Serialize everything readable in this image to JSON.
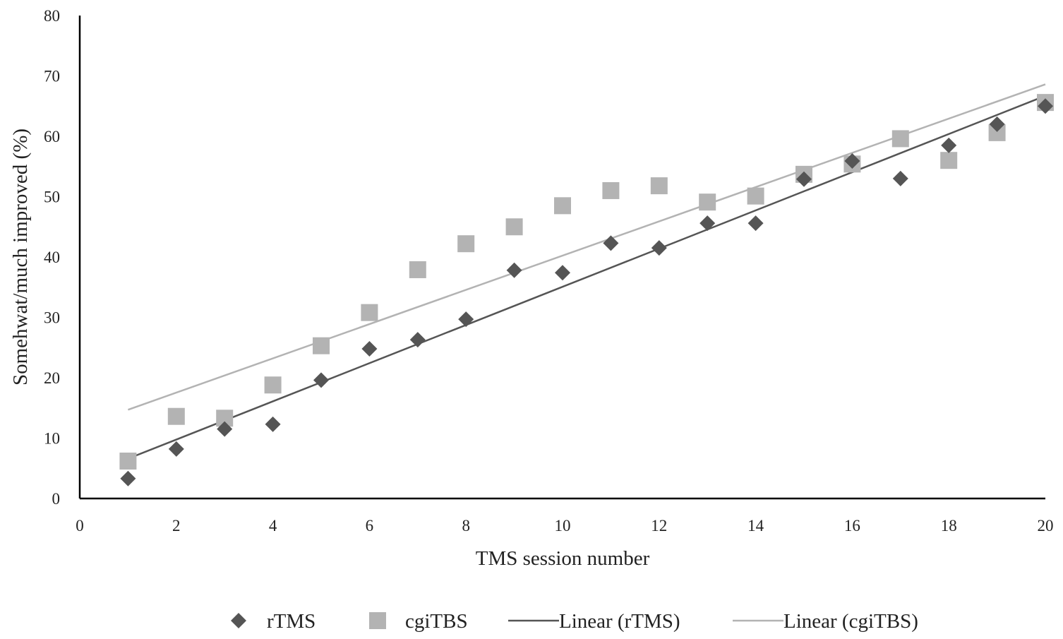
{
  "chart_data": {
    "type": "scatter",
    "title": "",
    "xlabel": "TMS session number",
    "ylabel": "Somehwat/much improved (%)",
    "xlim": [
      0,
      20
    ],
    "ylim": [
      0,
      80
    ],
    "xticks": [
      0,
      2,
      4,
      6,
      8,
      10,
      12,
      14,
      16,
      18,
      20
    ],
    "yticks": [
      0,
      10,
      20,
      30,
      40,
      50,
      60,
      70,
      80
    ],
    "grid": false,
    "legend_placement": "bottom",
    "x": [
      1,
      2,
      3,
      4,
      5,
      6,
      7,
      8,
      9,
      10,
      11,
      12,
      13,
      14,
      15,
      16,
      17,
      18,
      19,
      20
    ],
    "series": [
      {
        "name": "rTMS",
        "marker": "diamond",
        "color": "#555555",
        "values": [
          3.3,
          8.2,
          11.5,
          12.3,
          19.6,
          24.8,
          26.3,
          29.7,
          37.8,
          37.4,
          42.3,
          41.5,
          45.6,
          45.6,
          52.9,
          55.9,
          53.0,
          58.5,
          62.0,
          65.0
        ]
      },
      {
        "name": "cgiTBS",
        "marker": "square",
        "color": "#b3b3b3",
        "values": [
          6.2,
          13.6,
          13.3,
          18.8,
          25.3,
          30.8,
          37.9,
          42.2,
          45.0,
          48.5,
          51.0,
          51.8,
          49.1,
          50.1,
          53.7,
          55.4,
          59.6,
          56.0,
          60.6,
          65.6
        ]
      }
    ],
    "trendlines": [
      {
        "name": "Linear (rTMS)",
        "color": "#555555",
        "x": [
          1,
          20
        ],
        "y": [
          6.6,
          66.7
        ]
      },
      {
        "name": "Linear (cgiTBS)",
        "color": "#b3b3b3",
        "x": [
          1,
          20
        ],
        "y": [
          14.7,
          68.6
        ]
      }
    ]
  }
}
